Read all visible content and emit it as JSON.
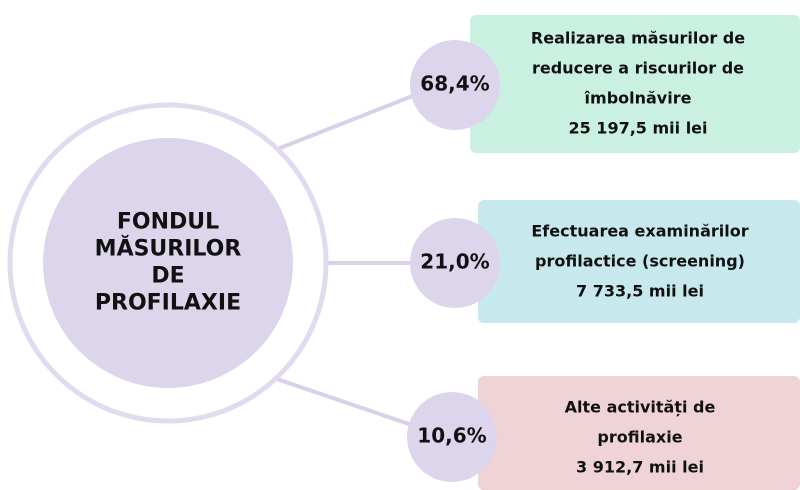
{
  "center": {
    "lines": [
      "FONDUL",
      "MĂSURILOR",
      "DE",
      "PROFILAXIE"
    ]
  },
  "items": [
    {
      "percent": "68,4%",
      "lines": [
        "Realizarea măsurilor de",
        "reducere a riscurilor de",
        "îmbolnăvire"
      ],
      "amount": "25 197,5 mii lei"
    },
    {
      "percent": "21,0%",
      "lines": [
        "Efectuarea examinărilor",
        "profilactice (screening)"
      ],
      "amount": "7 733,5 mii lei"
    },
    {
      "percent": "10,6%",
      "lines": [
        "Alte activități de",
        "profilaxie"
      ],
      "amount": "3 912,7 mii lei"
    }
  ]
}
